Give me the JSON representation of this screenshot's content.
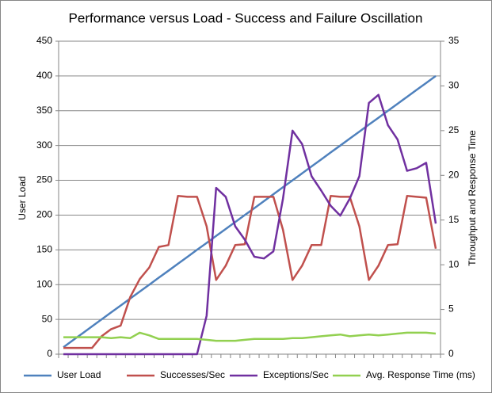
{
  "chart_data": {
    "type": "line",
    "title": "Performance versus Load - Success and Failure Oscillation",
    "y_label": "User Load",
    "y2_label": "Throughput and Response Time",
    "categories": [
      null,
      null,
      null,
      null,
      null,
      null,
      null,
      null,
      null,
      null,
      null,
      null,
      null,
      null,
      null,
      null,
      null,
      null,
      null,
      null,
      null,
      null,
      null,
      null,
      null,
      null,
      null,
      null,
      null,
      null,
      null,
      null,
      null,
      null,
      null,
      null,
      null,
      null,
      null,
      null
    ],
    "ylim": [
      0,
      450
    ],
    "yticks": [
      0,
      50,
      100,
      150,
      200,
      250,
      300,
      350,
      400,
      450
    ],
    "y2lim": [
      0,
      35
    ],
    "y2ticks": [
      0,
      5,
      10,
      15,
      20,
      25,
      30,
      35
    ],
    "grid": true,
    "legend": "bottom",
    "series": [
      {
        "name": "User Load",
        "color": "#4F81BD",
        "axis": "y",
        "values": [
          10,
          20,
          30,
          40,
          50,
          60,
          70,
          80,
          90,
          100,
          110,
          120,
          130,
          140,
          150,
          160,
          170,
          180,
          190,
          200,
          210,
          220,
          230,
          240,
          250,
          260,
          270,
          280,
          290,
          300,
          310,
          320,
          330,
          340,
          350,
          360,
          370,
          380,
          390,
          400
        ]
      },
      {
        "name": "Successes/Sec",
        "color": "#C0504D",
        "axis": "y2",
        "values": [
          0.7,
          0.7,
          0.7,
          0.7,
          2,
          2.8,
          3.2,
          6.4,
          8.4,
          9.7,
          12,
          12.2,
          17.7,
          17.6,
          17.6,
          14.3,
          8.3,
          9.9,
          12.2,
          12.3,
          17.6,
          17.6,
          17.6,
          13.9,
          8.3,
          9.9,
          12.2,
          12.2,
          17.7,
          17.6,
          17.6,
          14.3,
          8.3,
          9.9,
          12.2,
          12.3,
          17.7,
          17.6,
          17.5,
          11.8
        ]
      },
      {
        "name": "Exceptions/Sec",
        "color": "#7030A0",
        "axis": "y2",
        "values": [
          0,
          0,
          0,
          0,
          0,
          0,
          0,
          0,
          0,
          0,
          0,
          0,
          0,
          0,
          0,
          4.3,
          18.6,
          17.6,
          14.3,
          12.8,
          10.9,
          10.7,
          11.5,
          17.4,
          25,
          23.5,
          19.9,
          18.3,
          16.6,
          15.5,
          17.4,
          19.9,
          28.1,
          29,
          25.6,
          24,
          20.5,
          20.8,
          21.4,
          14.6
        ]
      },
      {
        "name": "Avg. Response Time (ms)",
        "color": "#92D050",
        "axis": "y2",
        "values": [
          1.9,
          1.9,
          1.9,
          1.9,
          1.9,
          1.8,
          1.9,
          1.8,
          2.4,
          2.1,
          1.7,
          1.7,
          1.7,
          1.7,
          1.7,
          1.6,
          1.5,
          1.5,
          1.5,
          1.6,
          1.7,
          1.7,
          1.7,
          1.7,
          1.8,
          1.8,
          1.9,
          2.0,
          2.1,
          2.2,
          2.0,
          2.1,
          2.2,
          2.1,
          2.2,
          2.3,
          2.4,
          2.4,
          2.4,
          2.3
        ]
      }
    ]
  }
}
